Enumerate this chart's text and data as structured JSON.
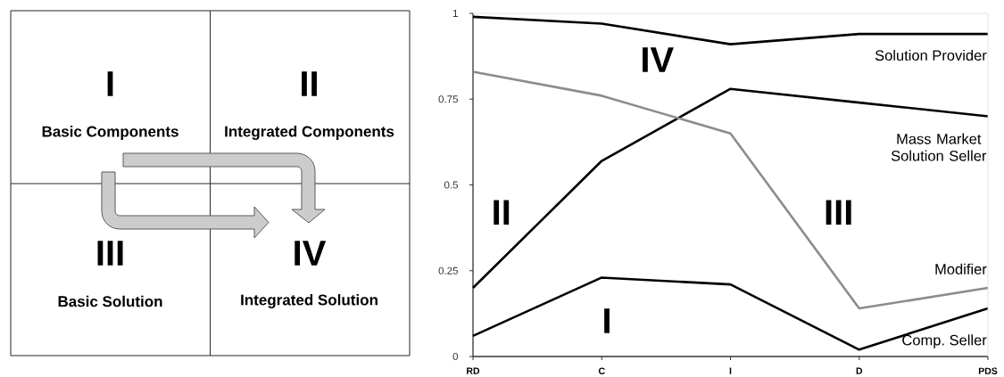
{
  "chart_data": [
    {
      "type": "other",
      "annotations": [
        "I",
        "Basic Components",
        "II",
        "Integrated Components",
        "III",
        "Basic Solution",
        "IV",
        "Integrated Solution"
      ]
    },
    {
      "type": "line",
      "categories": [
        "RD",
        "C",
        "I",
        "D",
        "PDS"
      ],
      "series": [
        {
          "name": "Solution Provider",
          "color": "#000000",
          "values": [
            0.99,
            0.97,
            0.91,
            0.94,
            0.94
          ]
        },
        {
          "name": "Mass Market Solution Seller",
          "color": "#000000",
          "values": [
            0.2,
            0.57,
            0.78,
            0.74,
            0.7
          ]
        },
        {
          "name": "Modifier",
          "color": "#8c8c8c",
          "values": [
            0.83,
            0.76,
            0.65,
            0.14,
            0.2
          ]
        },
        {
          "name": "Comp. Seller",
          "color": "#000000",
          "values": [
            0.06,
            0.23,
            0.21,
            0.02,
            0.14
          ]
        }
      ],
      "ylim": [
        0,
        1
      ],
      "yticks": [
        0,
        0.25,
        0.5,
        0.75,
        1
      ],
      "annotations": [
        "IV",
        "II",
        "III",
        "I"
      ]
    }
  ]
}
